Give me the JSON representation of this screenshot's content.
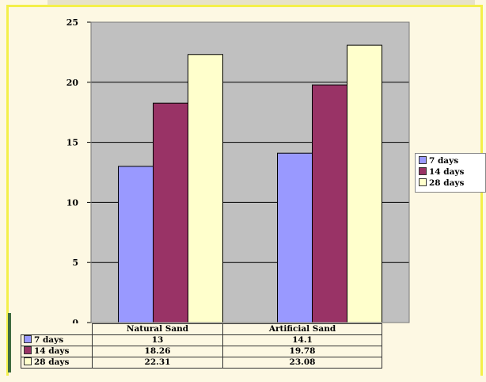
{
  "colors": {
    "plot_bg": "#c0c0c0",
    "series_7_days": "#9999ff",
    "series_14_days": "#993366",
    "series_28_days": "#ffffcc",
    "page_bg": "#fdf8e3",
    "frame": "#f4f04a"
  },
  "chart_data": {
    "type": "bar",
    "title": "",
    "xlabel": "",
    "ylabel": "",
    "categories": [
      "Natural Sand",
      "Artificial Sand"
    ],
    "series": [
      {
        "name": "7 days",
        "values": [
          13,
          14.1
        ]
      },
      {
        "name": "14  days",
        "values": [
          18.26,
          19.78
        ]
      },
      {
        "name": "28 days",
        "values": [
          22.31,
          23.08
        ]
      }
    ],
    "ylim": [
      0,
      25
    ],
    "yticks": [
      "0",
      "5",
      "10",
      "15",
      "20",
      "25"
    ],
    "grid": true,
    "legend_position": "right"
  },
  "legend": {
    "items": [
      {
        "label": "7 days",
        "icon": "swatch-square"
      },
      {
        "label": "14  days",
        "icon": "swatch-square"
      },
      {
        "label": "28 days",
        "icon": "swatch-square"
      }
    ]
  },
  "table": {
    "headers": [
      "Natural Sand",
      "Artificial Sand"
    ],
    "rows": [
      {
        "label": "7 days",
        "values": [
          "13",
          "14.1"
        ]
      },
      {
        "label": "14  days",
        "values": [
          "18.26",
          "19.78"
        ]
      },
      {
        "label": "28 days",
        "values": [
          "22.31",
          "23.08"
        ]
      }
    ]
  }
}
